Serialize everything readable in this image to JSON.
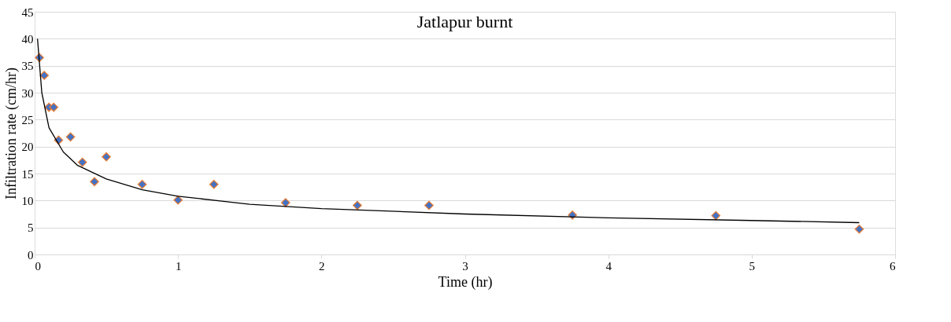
{
  "chart_data": {
    "type": "scatter",
    "title": "Jatlapur burnt",
    "xlabel": "Time (hr)",
    "ylabel": "Infiltration rate (cm/hr)",
    "xlim": [
      0,
      6
    ],
    "xticks": [
      0,
      1,
      2,
      3,
      4,
      5,
      6
    ],
    "ylim": [
      0,
      45
    ],
    "yticks": [
      0,
      5,
      10,
      15,
      20,
      25,
      30,
      35,
      40,
      45
    ],
    "grid": "y",
    "legend": false,
    "series": [
      {
        "type": "scatter",
        "marker": "diamond",
        "color": "#4472c4",
        "x": [
          0.033,
          0.067,
          0.1,
          0.133,
          0.167,
          0.25,
          0.333,
          0.417,
          0.5,
          0.75,
          1,
          1.25,
          1.75,
          2.25,
          2.75,
          3.75,
          4.75,
          5.75
        ],
        "values": [
          36.5,
          33.2,
          27.3,
          27.3,
          21.2,
          21.8,
          17.1,
          13.5,
          18.1,
          13,
          10.1,
          13,
          9.6,
          9.1,
          9.1,
          7.3,
          7.2,
          4.7
        ]
      },
      {
        "type": "line",
        "marker": "none",
        "color": "#000000",
        "line_style": "solid",
        "x": [
          0.02,
          0.05,
          0.1,
          0.2,
          0.3,
          0.5,
          0.75,
          1,
          1.5,
          2,
          3,
          4,
          5,
          5.75
        ],
        "values": [
          40,
          30,
          23.5,
          19,
          16.5,
          14,
          12,
          10.8,
          9.3,
          8.5,
          7.5,
          6.8,
          6.3,
          5.9
        ]
      }
    ]
  }
}
